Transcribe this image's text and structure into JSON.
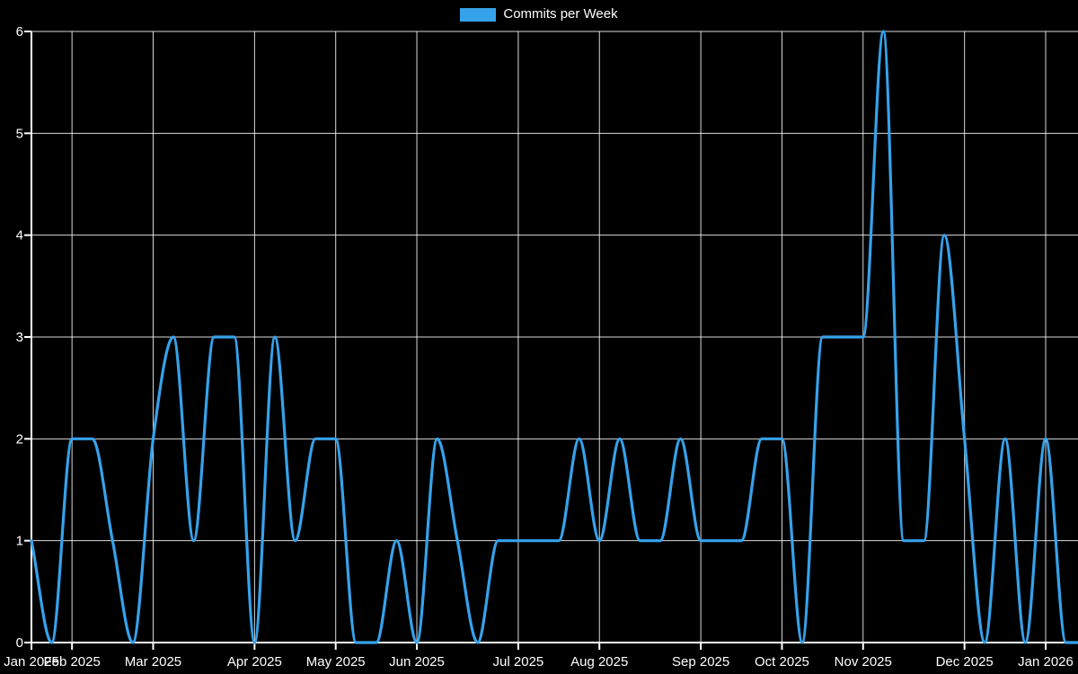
{
  "page": {
    "background": "#000000"
  },
  "legend": {
    "label": "Commits per Week",
    "swatch_color": "#36a2eb",
    "position": "top-center"
  },
  "chart_data": {
    "type": "line",
    "title": "Commits per Week",
    "series": [
      {
        "name": "Commits per Week",
        "color": "#36a2eb",
        "values": [
          1,
          0,
          2,
          2,
          1,
          0,
          2,
          3,
          1,
          3,
          3,
          0,
          3,
          1,
          2,
          2,
          0,
          0,
          1,
          0,
          2,
          1,
          0,
          1,
          1,
          1,
          1,
          2,
          1,
          2,
          1,
          1,
          2,
          1,
          1,
          1,
          2,
          2,
          0,
          3,
          3,
          3,
          6,
          1,
          1,
          4,
          2,
          0,
          2,
          0,
          2,
          0,
          0
        ]
      }
    ],
    "x_axis": {
      "unit": "week",
      "num_points": 53,
      "tick_labels": [
        "Jan 2025",
        "Feb 2025",
        "Mar 2025",
        "Apr 2025",
        "May 2025",
        "Jun 2025",
        "Jul 2025",
        "Aug 2025",
        "Sep 2025",
        "Oct 2025",
        "Nov 2025",
        "Dec 2025",
        "Jan 2026"
      ],
      "tick_point_index": [
        0,
        2,
        6,
        11,
        15,
        19,
        24,
        28,
        33,
        37,
        41,
        46,
        50
      ]
    },
    "y_axis": {
      "tick_labels": [
        "0",
        "1",
        "2",
        "3",
        "4",
        "5",
        "6"
      ],
      "min": 0,
      "max": 6
    },
    "grid": true,
    "smoothing": "monotone",
    "legend_position": "top-center",
    "colors": {
      "line": "#36a2eb",
      "grid": "#ffffff",
      "text": "#ffffff",
      "background": "#000000"
    }
  }
}
